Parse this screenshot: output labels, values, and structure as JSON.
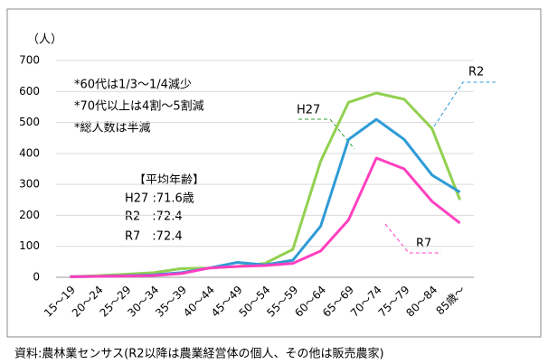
{
  "chart_data": {
    "type": "line",
    "y_label": "（人）",
    "categories": [
      "15～19",
      "20～24",
      "25～29",
      "30～34",
      "35～39",
      "40～44",
      "45～49",
      "50～54",
      "55～59",
      "60～64",
      "65～69",
      "70～74",
      "75～79",
      "80～84",
      "85歳～"
    ],
    "series": [
      {
        "name": "H27",
        "color": "#92d050",
        "values": [
          2,
          5,
          10,
          15,
          28,
          30,
          35,
          45,
          90,
          375,
          565,
          595,
          575,
          480,
          250
        ]
      },
      {
        "name": "R2",
        "color": "#2e9bd6",
        "values": [
          2,
          3,
          5,
          8,
          15,
          30,
          48,
          40,
          55,
          165,
          445,
          510,
          445,
          330,
          275
        ]
      },
      {
        "name": "R7",
        "color": "#ff3fbf",
        "values": [
          2,
          3,
          4,
          6,
          12,
          30,
          35,
          38,
          45,
          85,
          185,
          385,
          350,
          245,
          175
        ]
      }
    ],
    "ylim": [
      0,
      700
    ],
    "yticks": [
      0,
      100,
      200,
      300,
      400,
      500,
      600,
      700
    ],
    "grid": true,
    "annotations": [
      "*60代は1/3～1/4減少",
      "*70代以上は4割～5割減",
      "*総人数は半減",
      "【平均年齢】",
      "H27 :71.6歳",
      "R2　:72.4",
      "R7　:72.4"
    ],
    "source": "資料:農林業センサス(R2以降は農業経営体の個人、その他は販売農家)"
  }
}
